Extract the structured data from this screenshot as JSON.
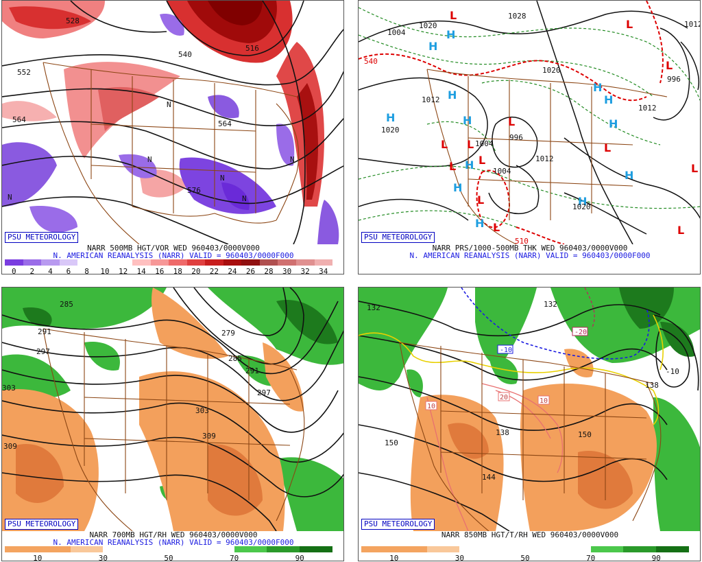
{
  "panels": [
    {
      "badge": "PSU METEOROLOGY",
      "title": "NARR 500MB HGT/VOR WED 960403/0000V000",
      "subtitle": "N. AMERICAN REANALYSIS (NARR) VALID = 960403/0000F000",
      "scale": {
        "colors": [
          "#7a3de0",
          "#9a6ce8",
          "#b89af0",
          "#d9c8f8",
          "#ffffff",
          "#ffffff",
          "#ffffff",
          "#ffc0c0",
          "#f79898",
          "#ef6a6a",
          "#e04040",
          "#c81e1e",
          "#a80e0e",
          "#901010",
          "#b05050",
          "#d07070",
          "#e09090",
          "#f0b0b0"
        ],
        "ticks": [
          "0",
          "2",
          "4",
          "6",
          "8",
          "10",
          "12",
          "14",
          "16",
          "18",
          "20",
          "22",
          "24",
          "26",
          "28",
          "30",
          "32",
          "34"
        ]
      },
      "labels": [
        "552",
        "564",
        "540",
        "528",
        "516",
        "564",
        "576"
      ]
    },
    {
      "badge": "PSU METEOROLOGY",
      "title": "NARR PRS/1000-500MB THK WED 960403/0000V000",
      "subtitle": "N. AMERICAN REANALYSIS (NARR) VALID = 960403/0000F000",
      "labels": [
        "1020",
        "1012",
        "1004",
        "1020",
        "1012",
        "1004",
        "996",
        "1012",
        "1020",
        "996",
        "1004",
        "1012",
        "1028",
        "1020",
        "540",
        "510"
      ],
      "high": "H",
      "low": "L"
    },
    {
      "badge": "PSU METEOROLOGY",
      "title": "NARR 700MB HGT/RH WED 960403/0000V000",
      "subtitle": "N. AMERICAN REANALYSIS (NARR) VALID = 960403/0000F000",
      "scale": {
        "colors": [
          "#f4a460",
          "#f4a460",
          "#f9c89a",
          "#ffffff",
          "#ffffff",
          "#ffffff",
          "#ffffff",
          "#4cc84c",
          "#2a9a2a",
          "#157015"
        ],
        "ticks": [
          "10",
          "30",
          "50",
          "70",
          "90"
        ]
      },
      "labels": [
        "285",
        "291",
        "297",
        "303",
        "309",
        "279",
        "285",
        "291",
        "297",
        "303",
        "309"
      ]
    },
    {
      "badge": "PSU METEOROLOGY",
      "title": "NARR 850MB HGT/T/RH WED 960403/0000V000",
      "subtitle": "",
      "scale": {
        "colors": [
          "#f4a460",
          "#f4a460",
          "#f9c89a",
          "#ffffff",
          "#ffffff",
          "#ffffff",
          "#ffffff",
          "#4cc84c",
          "#2a9a2a",
          "#157015"
        ],
        "ticks": [
          "10",
          "30",
          "50",
          "70",
          "90"
        ]
      },
      "labels": [
        "132",
        "138",
        "144",
        "150",
        "150",
        "138",
        "132",
        "-10",
        "-20",
        "10",
        "20",
        "10"
      ]
    }
  ]
}
